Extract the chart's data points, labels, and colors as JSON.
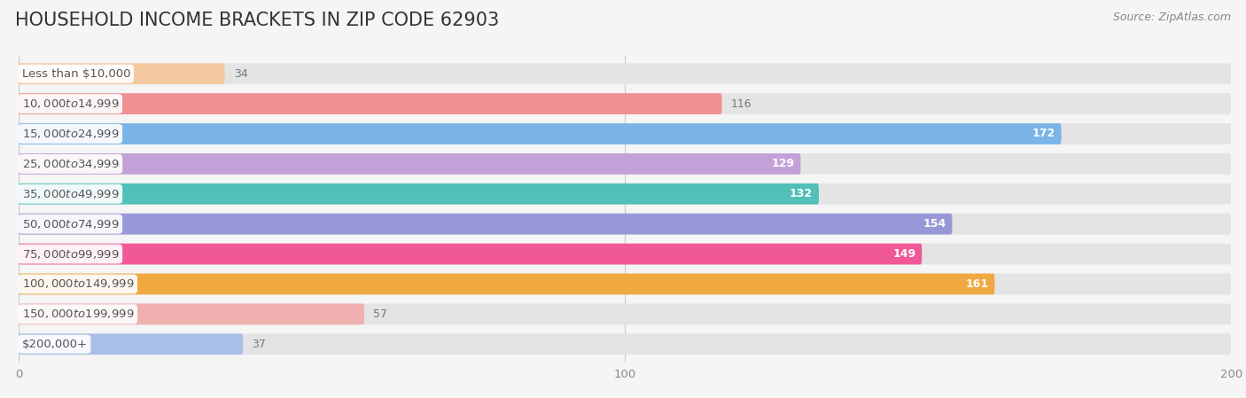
{
  "title": "HOUSEHOLD INCOME BRACKETS IN ZIP CODE 62903",
  "source": "Source: ZipAtlas.com",
  "categories": [
    "Less than $10,000",
    "$10,000 to $14,999",
    "$15,000 to $24,999",
    "$25,000 to $34,999",
    "$35,000 to $49,999",
    "$50,000 to $74,999",
    "$75,000 to $99,999",
    "$100,000 to $149,999",
    "$150,000 to $199,999",
    "$200,000+"
  ],
  "values": [
    34,
    116,
    172,
    129,
    132,
    154,
    149,
    161,
    57,
    37
  ],
  "bar_colors": [
    "#f5c9a0",
    "#f09090",
    "#7ab4e8",
    "#c4a0d8",
    "#50c0b8",
    "#9898d8",
    "#f05898",
    "#f0a840",
    "#f0b0b0",
    "#a8c0e8"
  ],
  "label_colors": [
    "#888888",
    "#888888",
    "#ffffff",
    "#ffffff",
    "#ffffff",
    "#ffffff",
    "#ffffff",
    "#ffffff",
    "#888888",
    "#888888"
  ],
  "xlim": [
    0,
    200
  ],
  "background_color": "#f5f5f5",
  "bar_bg_color": "#e4e4e4",
  "title_fontsize": 15,
  "label_fontsize": 9.5,
  "value_fontsize": 9,
  "source_fontsize": 9
}
